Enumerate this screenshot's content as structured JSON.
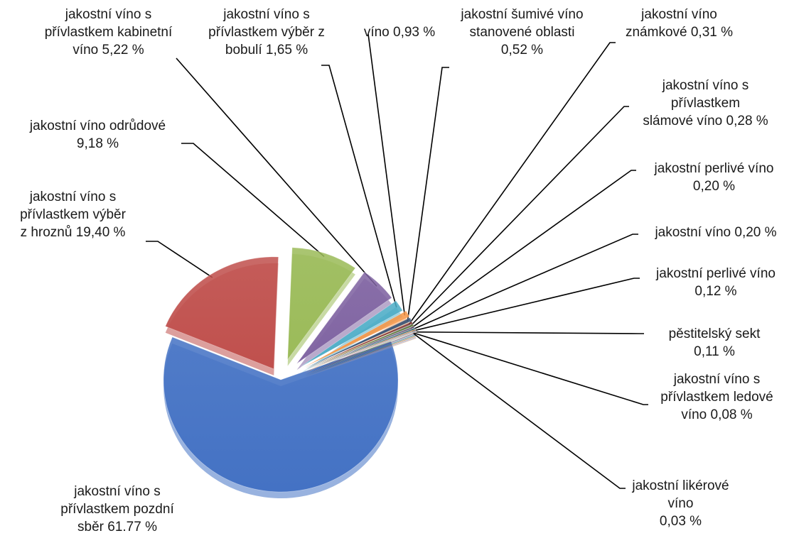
{
  "chart_data": {
    "type": "pie",
    "title": "",
    "exploded": true,
    "slices": [
      {
        "label": "jakostní víno s\npřívlastkem pozdní\nsběr 61.77 %",
        "value": 61.77,
        "color": "#4472C4"
      },
      {
        "label": "jakostní víno s\npřívlastkem výběr\nz hroznů 19,40 %",
        "value": 19.4,
        "color": "#C0504D"
      },
      {
        "label": "jakostní víno odrůdové\n9,18 %",
        "value": 9.18,
        "color": "#9BBB59"
      },
      {
        "label": "jakostní víno s\npřívlastkem kabinetní\nvíno 5,22 %",
        "value": 5.22,
        "color": "#8064A2"
      },
      {
        "label": "jakostní víno s\npřívlastkem výběr z\nbobulí 1,65 %",
        "value": 1.65,
        "color": "#4BACC6"
      },
      {
        "label": "víno 0,93 %",
        "value": 0.93,
        "color": "#F79646"
      },
      {
        "label": "jakostní šumivé víno\nstanovené oblasti\n0,52 %",
        "value": 0.52,
        "color": "#2C4D75"
      },
      {
        "label": "jakostní víno\nznámkové 0,31 %",
        "value": 0.31,
        "color": "#772C2A"
      },
      {
        "label": "jakostní víno s\npřívlastkem\nslámové víno 0,28 %",
        "value": 0.28,
        "color": "#5F7530"
      },
      {
        "label": "jakostní perlivé víno\n0,20 %",
        "value": 0.2,
        "color": "#4D3B62"
      },
      {
        "label": "jakostní víno 0,20 %",
        "value": 0.2,
        "color": "#276A7C"
      },
      {
        "label": "jakostní perlivé víno\n0,12 %",
        "value": 0.12,
        "color": "#B65708"
      },
      {
        "label": "pěstitelský sekt\n0,11 %",
        "value": 0.11,
        "color": "#729ACA"
      },
      {
        "label": "jakostní víno s\npřívlastkem ledové\nvíno 0,08 %",
        "value": 0.08,
        "color": "#CD7371"
      },
      {
        "label": "jakostní likérové\nvíno\n0,03 %",
        "value": 0.03,
        "color": "#AFC97A"
      }
    ]
  }
}
